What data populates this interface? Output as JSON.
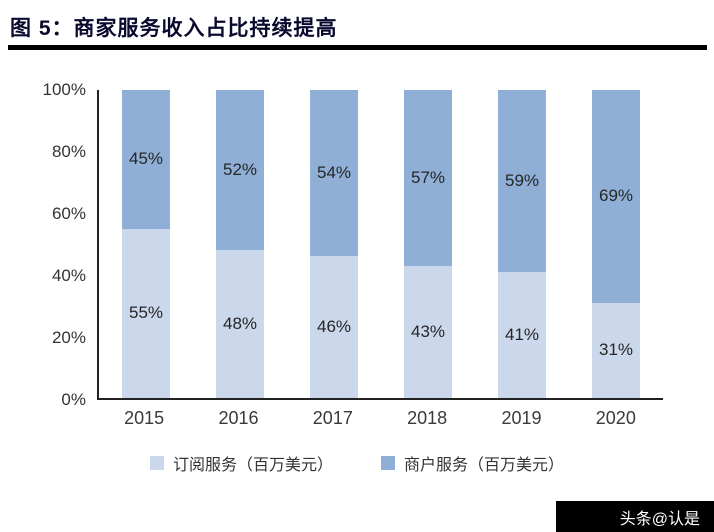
{
  "header": {
    "title": "图 5：商家服务收入占比持续提高"
  },
  "chart_data": {
    "type": "bar",
    "stacked": true,
    "percent": true,
    "title": "商家服务收入占比持续提高",
    "categories": [
      "2015",
      "2016",
      "2017",
      "2018",
      "2019",
      "2020"
    ],
    "series": [
      {
        "name": "订阅服务（百万美元）",
        "color": "#cbd8ec",
        "values": [
          55,
          48,
          46,
          43,
          41,
          31
        ]
      },
      {
        "name": "商户服务（百万美元）",
        "color": "#8fafd6",
        "values": [
          45,
          52,
          54,
          57,
          59,
          69
        ]
      }
    ],
    "ylim": [
      0,
      100
    ],
    "yticks": [
      "0%",
      "20%",
      "40%",
      "60%",
      "80%",
      "100%"
    ],
    "grid": false,
    "legend_position": "bottom",
    "value_label_format": "{v}%"
  },
  "watermark": {
    "label": "头条@认是"
  }
}
